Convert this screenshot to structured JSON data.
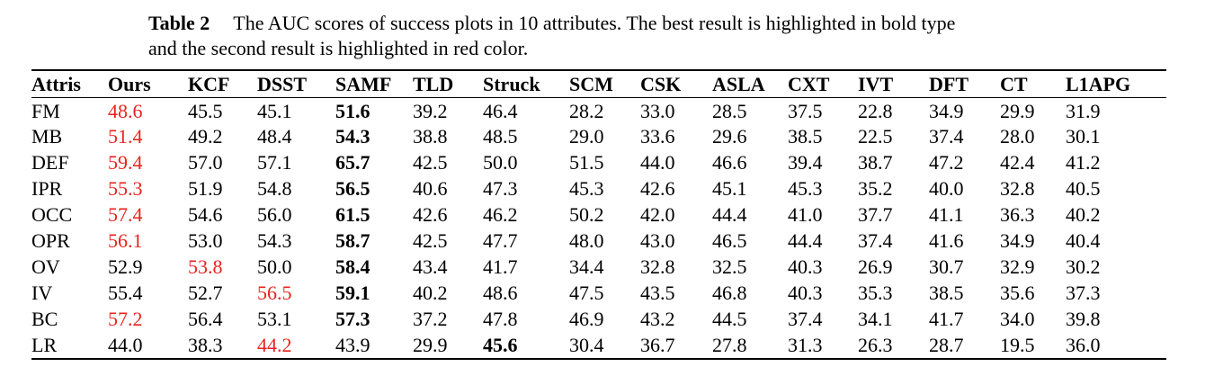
{
  "caption": {
    "label": "Table 2",
    "line1": "The AUC scores of success plots in 10 attributes. The best result is highlighted in bold type",
    "line2": "and the second result is highlighted in red color."
  },
  "columns": [
    "Attris",
    "Ours",
    "KCF",
    "DSST",
    "SAMF",
    "TLD",
    "Struck",
    "SCM",
    "CSK",
    "ASLA",
    "CXT",
    "IVT",
    "DFT",
    "CT",
    "L1APG"
  ],
  "rows": [
    {
      "attr": "FM",
      "values": [
        "48.6",
        "45.5",
        "45.1",
        "51.6",
        "39.2",
        "46.4",
        "28.2",
        "33.0",
        "28.5",
        "37.5",
        "22.8",
        "34.9",
        "29.9",
        "31.9"
      ],
      "best": 3,
      "second": 0
    },
    {
      "attr": "MB",
      "values": [
        "51.4",
        "49.2",
        "48.4",
        "54.3",
        "38.8",
        "48.5",
        "29.0",
        "33.6",
        "29.6",
        "38.5",
        "22.5",
        "37.4",
        "28.0",
        "30.1"
      ],
      "best": 3,
      "second": 0
    },
    {
      "attr": "DEF",
      "values": [
        "59.4",
        "57.0",
        "57.1",
        "65.7",
        "42.5",
        "50.0",
        "51.5",
        "44.0",
        "46.6",
        "39.4",
        "38.7",
        "47.2",
        "42.4",
        "41.2"
      ],
      "best": 3,
      "second": 0
    },
    {
      "attr": "IPR",
      "values": [
        "55.3",
        "51.9",
        "54.8",
        "56.5",
        "40.6",
        "47.3",
        "45.3",
        "42.6",
        "45.1",
        "45.3",
        "35.2",
        "40.0",
        "32.8",
        "40.5"
      ],
      "best": 3,
      "second": 0
    },
    {
      "attr": "OCC",
      "values": [
        "57.4",
        "54.6",
        "56.0",
        "61.5",
        "42.6",
        "46.2",
        "50.2",
        "42.0",
        "44.4",
        "41.0",
        "37.7",
        "41.1",
        "36.3",
        "40.2"
      ],
      "best": 3,
      "second": 0
    },
    {
      "attr": "OPR",
      "values": [
        "56.1",
        "53.0",
        "54.3",
        "58.7",
        "42.5",
        "47.7",
        "48.0",
        "43.0",
        "46.5",
        "44.4",
        "37.4",
        "41.6",
        "34.9",
        "40.4"
      ],
      "best": 3,
      "second": 0
    },
    {
      "attr": "OV",
      "values": [
        "52.9",
        "53.8",
        "50.0",
        "58.4",
        "43.4",
        "41.7",
        "34.4",
        "32.8",
        "32.5",
        "40.3",
        "26.9",
        "30.7",
        "32.9",
        "30.2"
      ],
      "best": 3,
      "second": 1
    },
    {
      "attr": "IV",
      "values": [
        "55.4",
        "52.7",
        "56.5",
        "59.1",
        "40.2",
        "48.6",
        "47.5",
        "43.5",
        "46.8",
        "40.3",
        "35.3",
        "38.5",
        "35.6",
        "37.3"
      ],
      "best": 3,
      "second": 2
    },
    {
      "attr": "BC",
      "values": [
        "57.2",
        "56.4",
        "53.1",
        "57.3",
        "37.2",
        "47.8",
        "46.9",
        "43.2",
        "44.5",
        "37.4",
        "34.1",
        "41.7",
        "34.0",
        "39.8"
      ],
      "best": 3,
      "second": 0
    },
    {
      "attr": "LR",
      "values": [
        "44.0",
        "38.3",
        "44.2",
        "43.9",
        "29.9",
        "45.6",
        "30.4",
        "36.7",
        "27.8",
        "31.3",
        "26.3",
        "28.7",
        "19.5",
        "36.0"
      ],
      "best": 5,
      "second": 2
    }
  ],
  "colors": {
    "second": "#e8231f",
    "text": "#000000"
  }
}
